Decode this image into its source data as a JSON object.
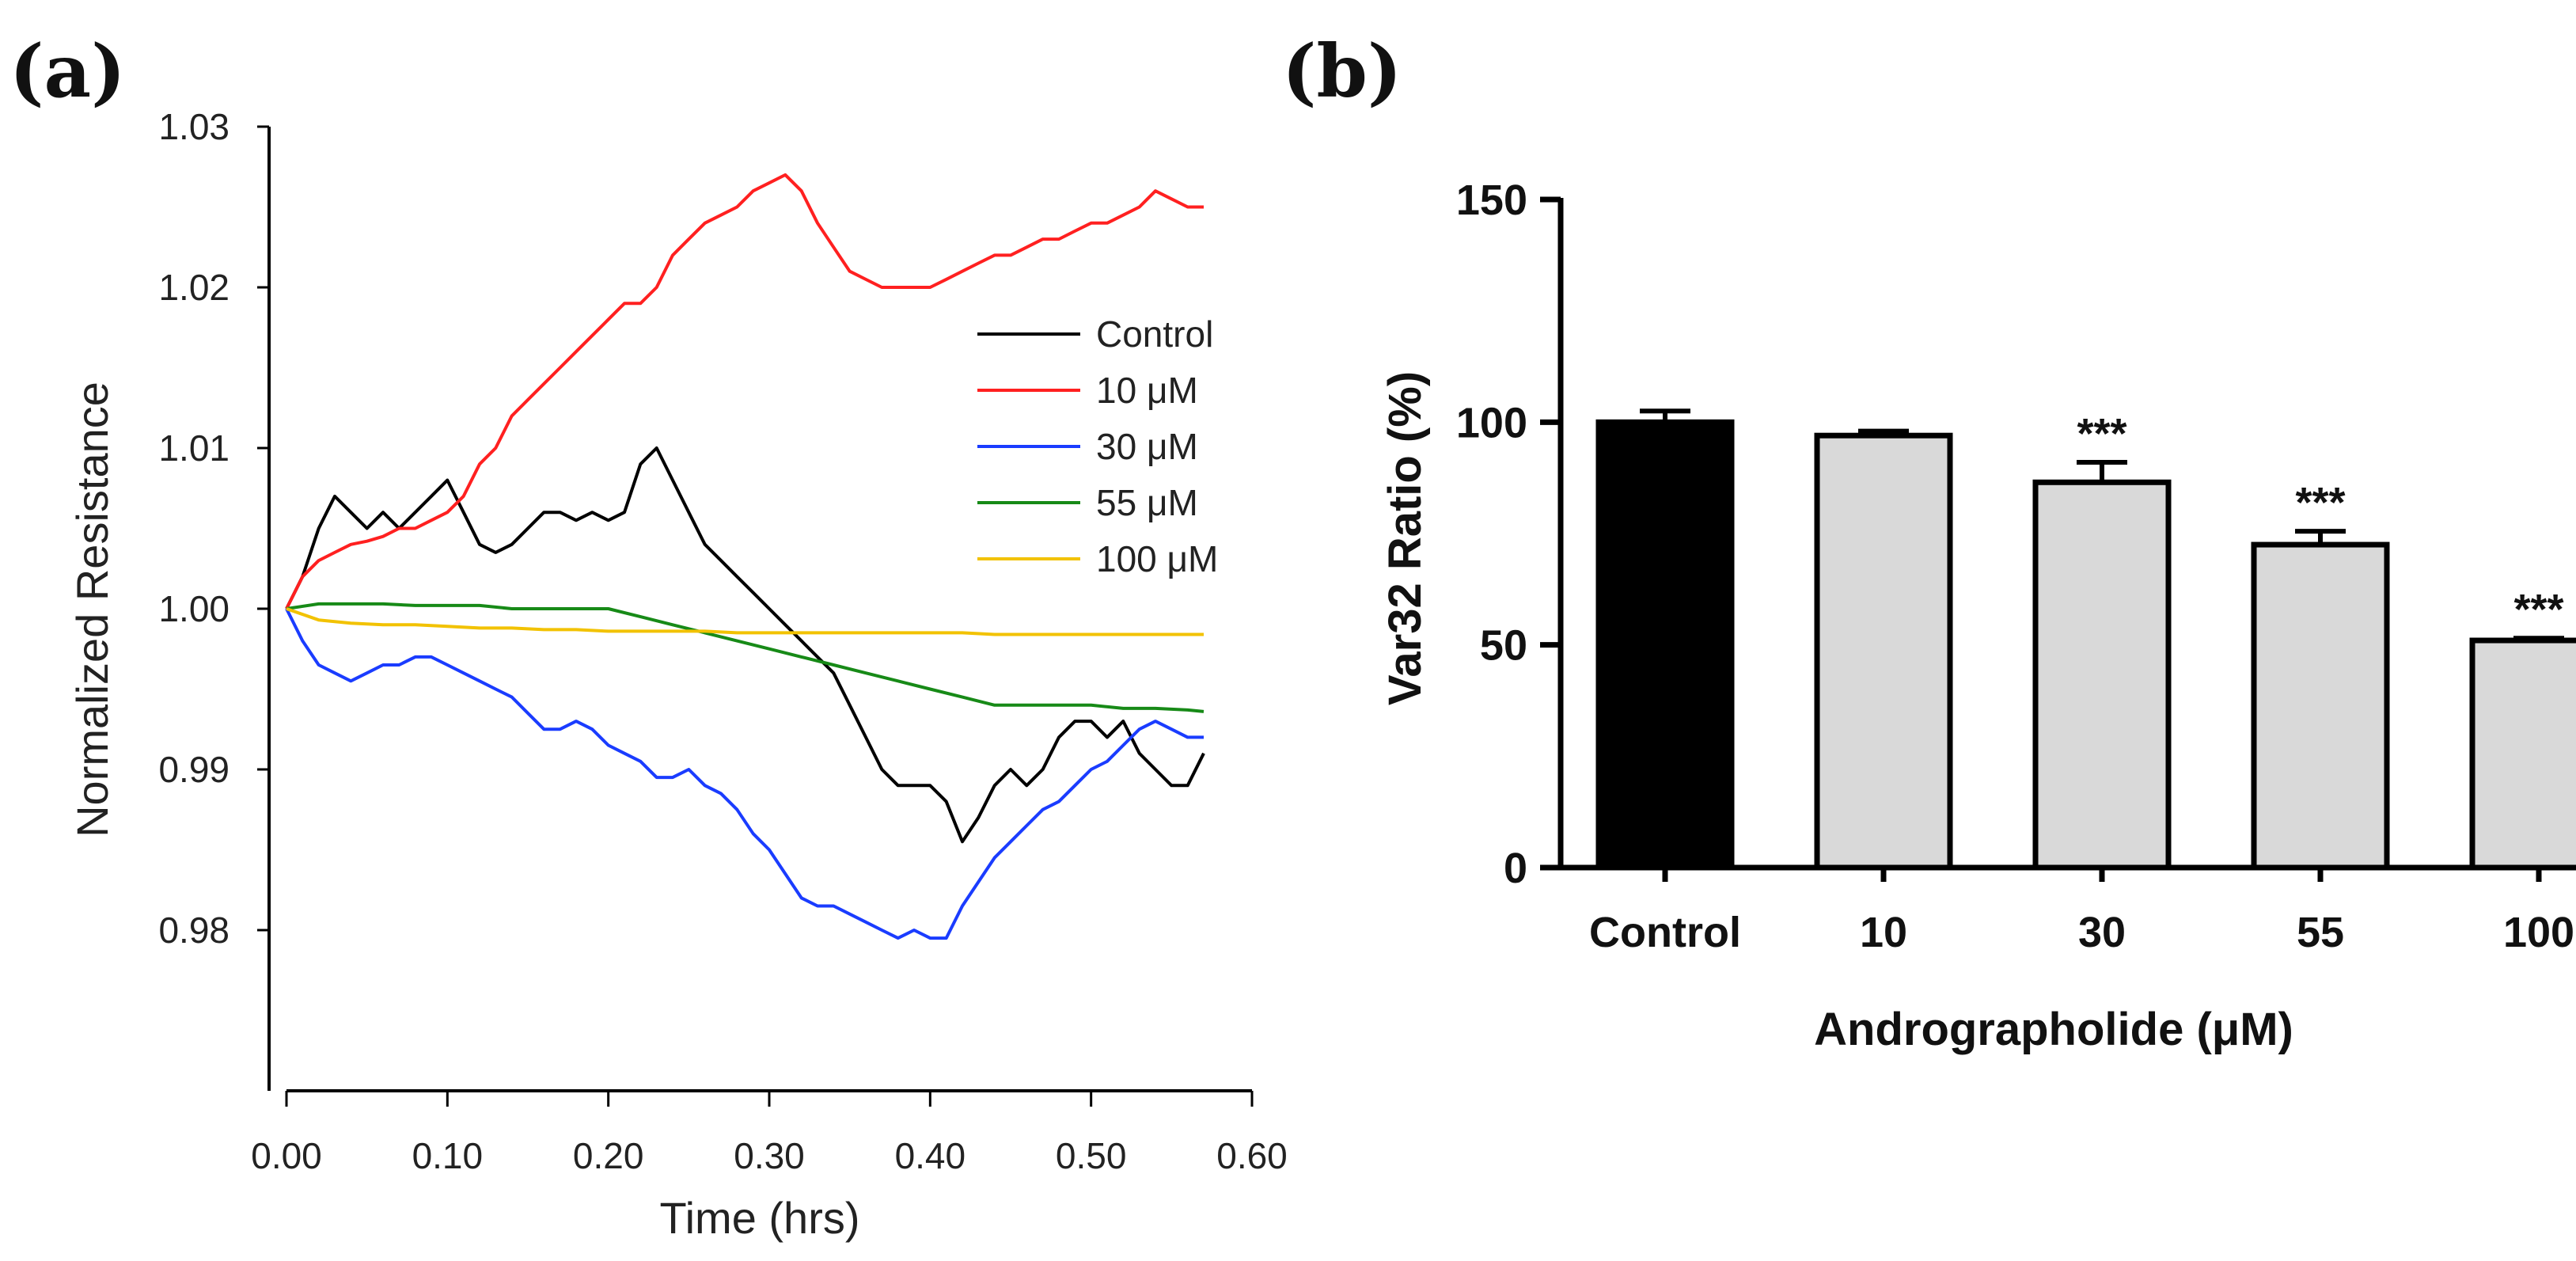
{
  "chart_data": [
    {
      "panel_label": "(a)",
      "type": "line",
      "title": "",
      "xlabel": "Time (hrs)",
      "ylabel": "Normalized Resistance",
      "xlim": [
        0.0,
        0.6
      ],
      "ylim": [
        0.97,
        1.03
      ],
      "xticks": [
        "0.00",
        "0.10",
        "0.20",
        "0.30",
        "0.40",
        "0.50",
        "0.60"
      ],
      "yticks": [
        "1.03",
        "1.02",
        "1.01",
        "1.00",
        "0.99",
        "0.98"
      ],
      "grid": false,
      "legend_position": "right-middle",
      "series": [
        {
          "name": "Control",
          "color": "#000000",
          "x": [
            0.0,
            0.01,
            0.02,
            0.03,
            0.04,
            0.05,
            0.06,
            0.07,
            0.08,
            0.09,
            0.1,
            0.11,
            0.12,
            0.13,
            0.14,
            0.15,
            0.16,
            0.17,
            0.18,
            0.19,
            0.2,
            0.21,
            0.22,
            0.23,
            0.24,
            0.25,
            0.26,
            0.27,
            0.28,
            0.29,
            0.3,
            0.31,
            0.32,
            0.33,
            0.34,
            0.35,
            0.36,
            0.37,
            0.38,
            0.39,
            0.4,
            0.41,
            0.42,
            0.43,
            0.44,
            0.45,
            0.46,
            0.47,
            0.48,
            0.49,
            0.5,
            0.51,
            0.52,
            0.53,
            0.54,
            0.55,
            0.56,
            0.57
          ],
          "y": [
            1.0,
            1.002,
            1.005,
            1.007,
            1.006,
            1.005,
            1.006,
            1.005,
            1.006,
            1.007,
            1.008,
            1.006,
            1.004,
            1.0035,
            1.004,
            1.005,
            1.006,
            1.006,
            1.0055,
            1.006,
            1.0055,
            1.006,
            1.009,
            1.01,
            1.008,
            1.006,
            1.004,
            1.003,
            1.002,
            1.001,
            1.0,
            0.999,
            0.998,
            0.997,
            0.996,
            0.994,
            0.992,
            0.99,
            0.989,
            0.989,
            0.989,
            0.988,
            0.9855,
            0.987,
            0.989,
            0.99,
            0.989,
            0.99,
            0.992,
            0.993,
            0.993,
            0.992,
            0.993,
            0.991,
            0.99,
            0.989,
            0.989,
            0.991
          ]
        },
        {
          "name": "10 μM",
          "color": "#ff2020",
          "x": [
            0.0,
            0.01,
            0.02,
            0.03,
            0.04,
            0.05,
            0.06,
            0.07,
            0.08,
            0.09,
            0.1,
            0.11,
            0.12,
            0.13,
            0.14,
            0.15,
            0.16,
            0.17,
            0.18,
            0.19,
            0.2,
            0.21,
            0.22,
            0.23,
            0.24,
            0.25,
            0.26,
            0.27,
            0.28,
            0.29,
            0.3,
            0.31,
            0.32,
            0.33,
            0.34,
            0.35,
            0.36,
            0.37,
            0.38,
            0.39,
            0.4,
            0.41,
            0.42,
            0.43,
            0.44,
            0.45,
            0.46,
            0.47,
            0.48,
            0.49,
            0.5,
            0.51,
            0.52,
            0.53,
            0.54,
            0.55,
            0.56,
            0.57
          ],
          "y": [
            1.0,
            1.002,
            1.003,
            1.0035,
            1.004,
            1.0042,
            1.0045,
            1.005,
            1.005,
            1.0055,
            1.006,
            1.007,
            1.009,
            1.01,
            1.012,
            1.013,
            1.014,
            1.015,
            1.016,
            1.017,
            1.018,
            1.019,
            1.019,
            1.02,
            1.022,
            1.023,
            1.024,
            1.0245,
            1.025,
            1.026,
            1.0265,
            1.027,
            1.026,
            1.024,
            1.0225,
            1.021,
            1.0205,
            1.02,
            1.02,
            1.02,
            1.02,
            1.0205,
            1.021,
            1.0215,
            1.022,
            1.022,
            1.0225,
            1.023,
            1.023,
            1.0235,
            1.024,
            1.024,
            1.0245,
            1.025,
            1.026,
            1.0255,
            1.025,
            1.025
          ]
        },
        {
          "name": "30 μM",
          "color": "#1a3cff",
          "x": [
            0.0,
            0.01,
            0.02,
            0.03,
            0.04,
            0.05,
            0.06,
            0.07,
            0.08,
            0.09,
            0.1,
            0.11,
            0.12,
            0.13,
            0.14,
            0.15,
            0.16,
            0.17,
            0.18,
            0.19,
            0.2,
            0.21,
            0.22,
            0.23,
            0.24,
            0.25,
            0.26,
            0.27,
            0.28,
            0.29,
            0.3,
            0.31,
            0.32,
            0.33,
            0.34,
            0.35,
            0.36,
            0.37,
            0.38,
            0.39,
            0.4,
            0.41,
            0.42,
            0.43,
            0.44,
            0.45,
            0.46,
            0.47,
            0.48,
            0.49,
            0.5,
            0.51,
            0.52,
            0.53,
            0.54,
            0.55,
            0.56,
            0.57
          ],
          "y": [
            1.0,
            0.998,
            0.9965,
            0.996,
            0.9955,
            0.996,
            0.9965,
            0.9965,
            0.997,
            0.997,
            0.9965,
            0.996,
            0.9955,
            0.995,
            0.9945,
            0.9935,
            0.9925,
            0.9925,
            0.993,
            0.9925,
            0.9915,
            0.991,
            0.9905,
            0.9895,
            0.9895,
            0.99,
            0.989,
            0.9885,
            0.9875,
            0.986,
            0.985,
            0.9835,
            0.982,
            0.9815,
            0.9815,
            0.981,
            0.9805,
            0.98,
            0.9795,
            0.98,
            0.9795,
            0.9795,
            0.9815,
            0.983,
            0.9845,
            0.9855,
            0.9865,
            0.9875,
            0.988,
            0.989,
            0.99,
            0.9905,
            0.9915,
            0.9925,
            0.993,
            0.9925,
            0.992,
            0.992
          ]
        },
        {
          "name": "55 μM",
          "color": "#178a17",
          "x": [
            0.0,
            0.02,
            0.04,
            0.06,
            0.08,
            0.1,
            0.12,
            0.14,
            0.16,
            0.18,
            0.2,
            0.22,
            0.24,
            0.26,
            0.28,
            0.3,
            0.32,
            0.34,
            0.36,
            0.38,
            0.4,
            0.42,
            0.44,
            0.46,
            0.48,
            0.5,
            0.52,
            0.54,
            0.56,
            0.57
          ],
          "y": [
            1.0,
            1.0003,
            1.0003,
            1.0003,
            1.0002,
            1.0002,
            1.0002,
            1.0,
            1.0,
            1.0,
            1.0,
            0.9995,
            0.999,
            0.9985,
            0.998,
            0.9975,
            0.997,
            0.9965,
            0.996,
            0.9955,
            0.995,
            0.9945,
            0.994,
            0.994,
            0.994,
            0.994,
            0.9938,
            0.9938,
            0.9937,
            0.9936
          ]
        },
        {
          "name": "100 μM",
          "color": "#f2c200",
          "x": [
            0.0,
            0.02,
            0.04,
            0.06,
            0.08,
            0.1,
            0.12,
            0.14,
            0.16,
            0.18,
            0.2,
            0.22,
            0.24,
            0.26,
            0.28,
            0.3,
            0.32,
            0.34,
            0.36,
            0.38,
            0.4,
            0.42,
            0.44,
            0.46,
            0.48,
            0.5,
            0.52,
            0.54,
            0.56,
            0.57
          ],
          "y": [
            1.0,
            0.9993,
            0.9991,
            0.999,
            0.999,
            0.9989,
            0.9988,
            0.9988,
            0.9987,
            0.9987,
            0.9986,
            0.9986,
            0.9986,
            0.9986,
            0.9985,
            0.9985,
            0.9985,
            0.9985,
            0.9985,
            0.9985,
            0.9985,
            0.9985,
            0.9984,
            0.9984,
            0.9984,
            0.9984,
            0.9984,
            0.9984,
            0.9984,
            0.9984
          ]
        }
      ]
    },
    {
      "panel_label": "(b)",
      "type": "bar",
      "title": "",
      "xlabel": "Andrographolide (μM)",
      "ylabel": "Var32 Ratio (%)",
      "ylim": [
        0,
        150
      ],
      "yticks": [
        "0",
        "50",
        "100",
        "150"
      ],
      "grid": false,
      "categories": [
        "Control",
        "10",
        "30",
        "55",
        "100"
      ],
      "values": [
        100,
        97,
        86.5,
        72.5,
        51
      ],
      "errors": [
        2.5,
        1.0,
        4.5,
        3.0,
        0.5
      ],
      "significance": [
        "",
        "",
        "***",
        "***",
        "***"
      ],
      "bar_colors": [
        "#000000",
        "#d9d9d9",
        "#d9d9d9",
        "#d9d9d9",
        "#d9d9d9"
      ]
    }
  ]
}
